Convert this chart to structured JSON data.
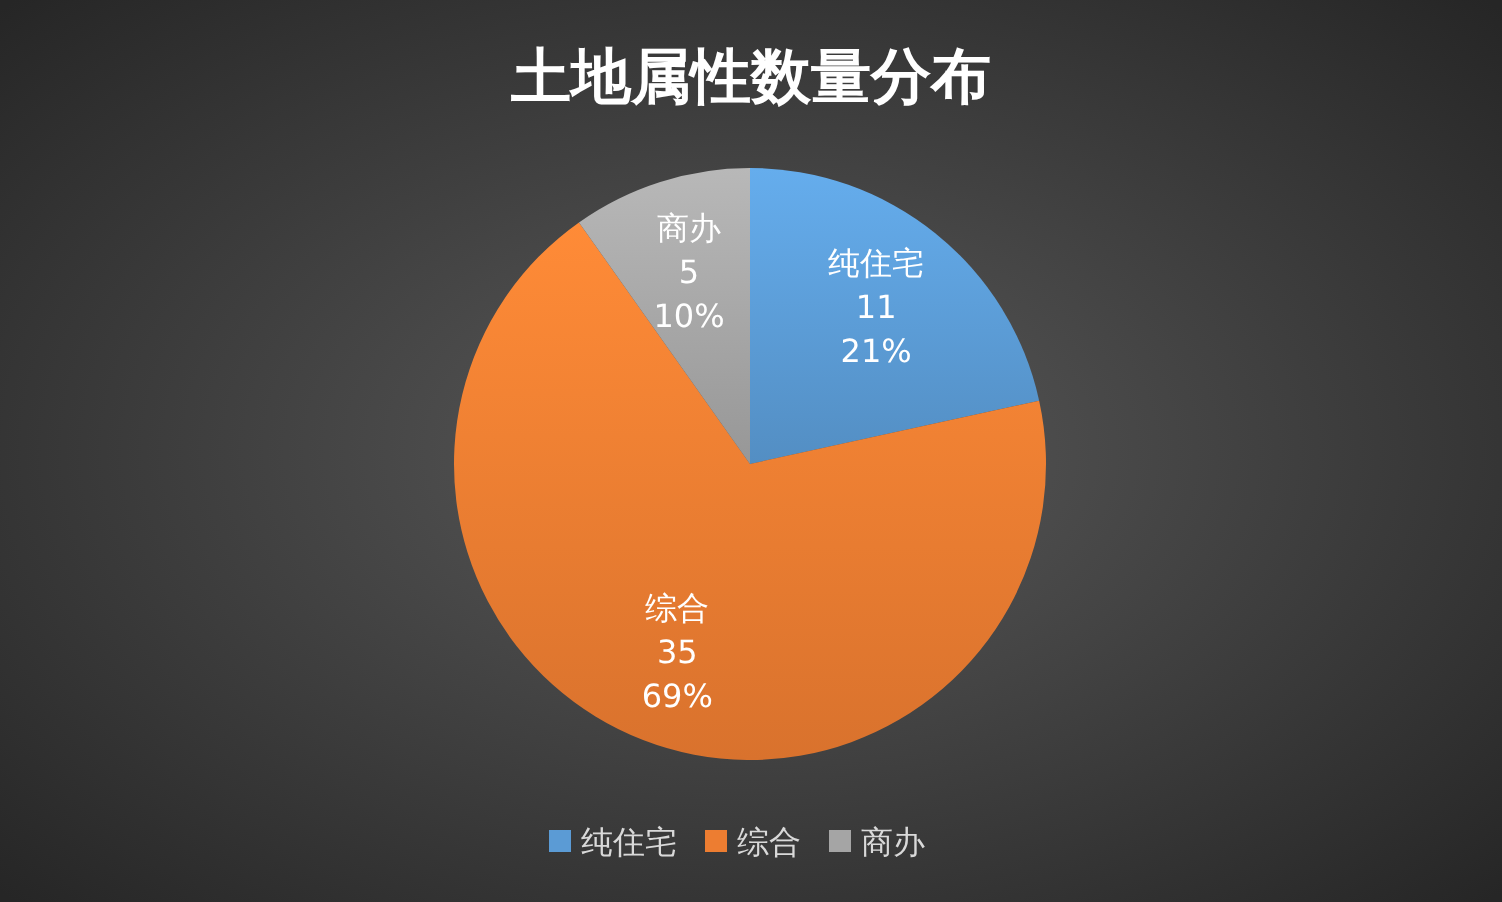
{
  "chart_data": {
    "type": "pie",
    "title": "土地属性数量分布",
    "categories": [
      "纯住宅",
      "综合",
      "商办"
    ],
    "values": [
      11,
      35,
      5
    ],
    "colors": [
      "#5b9bd5",
      "#ed7d31",
      "#a5a5a5"
    ],
    "value_labels": [
      "11\n21%",
      "35\n69%",
      "5\n10%"
    ],
    "legend": "bottom"
  }
}
